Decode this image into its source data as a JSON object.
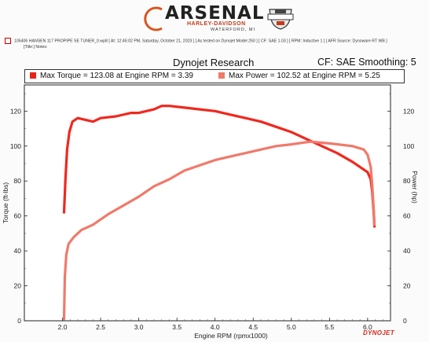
{
  "header": {
    "brand": "ARSENAL",
    "brand_sub": "HARLEY-DAVIDSON",
    "brand_location": "WATERFORD, MI",
    "file_info": "105406 HANSEN 117 PROPIPE SE TUNER_0.wp8 [ At: 12:45:02 PM, Saturday, October 21, 2023 ] [ As tested on Dynojet Model 250 ] [ CF: SAE 1.03 ] [ RPM: Inductive 1 ] [ AFR Source: Dynoware RT WB ]",
    "notes": "[Title:] Notes:"
  },
  "subtitle": "Dynojet Research",
  "correction": "CF: SAE Smoothing: 5",
  "legend": {
    "torque": "Max Torque = 123.08 at Engine RPM = 3.39",
    "power": "Max Power = 102.52 at Engine RPM = 5.25"
  },
  "footer_mark": "DYNOJET",
  "colors": {
    "torque": "#f0281e",
    "power": "#f07a6a"
  },
  "chart_data": {
    "type": "line",
    "xlabel": "Engine RPM (rpmx1000)",
    "ylabel_left": "Torque (ft-lbs)",
    "ylabel_right": "Power (hp)",
    "xlim": [
      1.5,
      6.3
    ],
    "ylim": [
      0,
      135
    ],
    "x_ticks": [
      "2.0",
      "2.5",
      "3.0",
      "3.5",
      "4.0",
      "4.5",
      "5.0",
      "5.5",
      "6.0"
    ],
    "y_ticks": [
      "0",
      "20",
      "40",
      "60",
      "80",
      "100",
      "120"
    ],
    "grid": false,
    "series": [
      {
        "name": "Torque",
        "points": [
          [
            2.02,
            62
          ],
          [
            2.04,
            82
          ],
          [
            2.06,
            98
          ],
          [
            2.09,
            108
          ],
          [
            2.13,
            114
          ],
          [
            2.2,
            116
          ],
          [
            2.3,
            115
          ],
          [
            2.4,
            114
          ],
          [
            2.5,
            116
          ],
          [
            2.7,
            117
          ],
          [
            2.9,
            119
          ],
          [
            3.0,
            119
          ],
          [
            3.1,
            120
          ],
          [
            3.2,
            121
          ],
          [
            3.3,
            123
          ],
          [
            3.4,
            123
          ],
          [
            3.6,
            122
          ],
          [
            3.8,
            121
          ],
          [
            4.0,
            120
          ],
          [
            4.2,
            118
          ],
          [
            4.4,
            116
          ],
          [
            4.6,
            114
          ],
          [
            4.8,
            111
          ],
          [
            5.0,
            108
          ],
          [
            5.2,
            104
          ],
          [
            5.4,
            100
          ],
          [
            5.6,
            96
          ],
          [
            5.8,
            91
          ],
          [
            6.0,
            85
          ],
          [
            6.04,
            81
          ],
          [
            6.06,
            74
          ],
          [
            6.08,
            62
          ],
          [
            6.09,
            54
          ]
        ]
      },
      {
        "name": "Power",
        "points": [
          [
            2.02,
            1
          ],
          [
            2.03,
            25
          ],
          [
            2.05,
            38
          ],
          [
            2.08,
            44
          ],
          [
            2.15,
            48
          ],
          [
            2.25,
            52
          ],
          [
            2.4,
            55
          ],
          [
            2.6,
            61
          ],
          [
            2.8,
            66
          ],
          [
            3.0,
            71
          ],
          [
            3.2,
            77
          ],
          [
            3.4,
            81
          ],
          [
            3.6,
            86
          ],
          [
            3.8,
            89
          ],
          [
            4.0,
            92
          ],
          [
            4.2,
            94
          ],
          [
            4.4,
            96
          ],
          [
            4.6,
            98
          ],
          [
            4.8,
            100
          ],
          [
            5.0,
            101
          ],
          [
            5.25,
            102.5
          ],
          [
            5.5,
            101.5
          ],
          [
            5.8,
            100
          ],
          [
            5.95,
            98
          ],
          [
            6.0,
            95
          ],
          [
            6.04,
            88
          ],
          [
            6.06,
            78
          ],
          [
            6.08,
            64
          ],
          [
            6.09,
            55
          ]
        ]
      }
    ]
  }
}
